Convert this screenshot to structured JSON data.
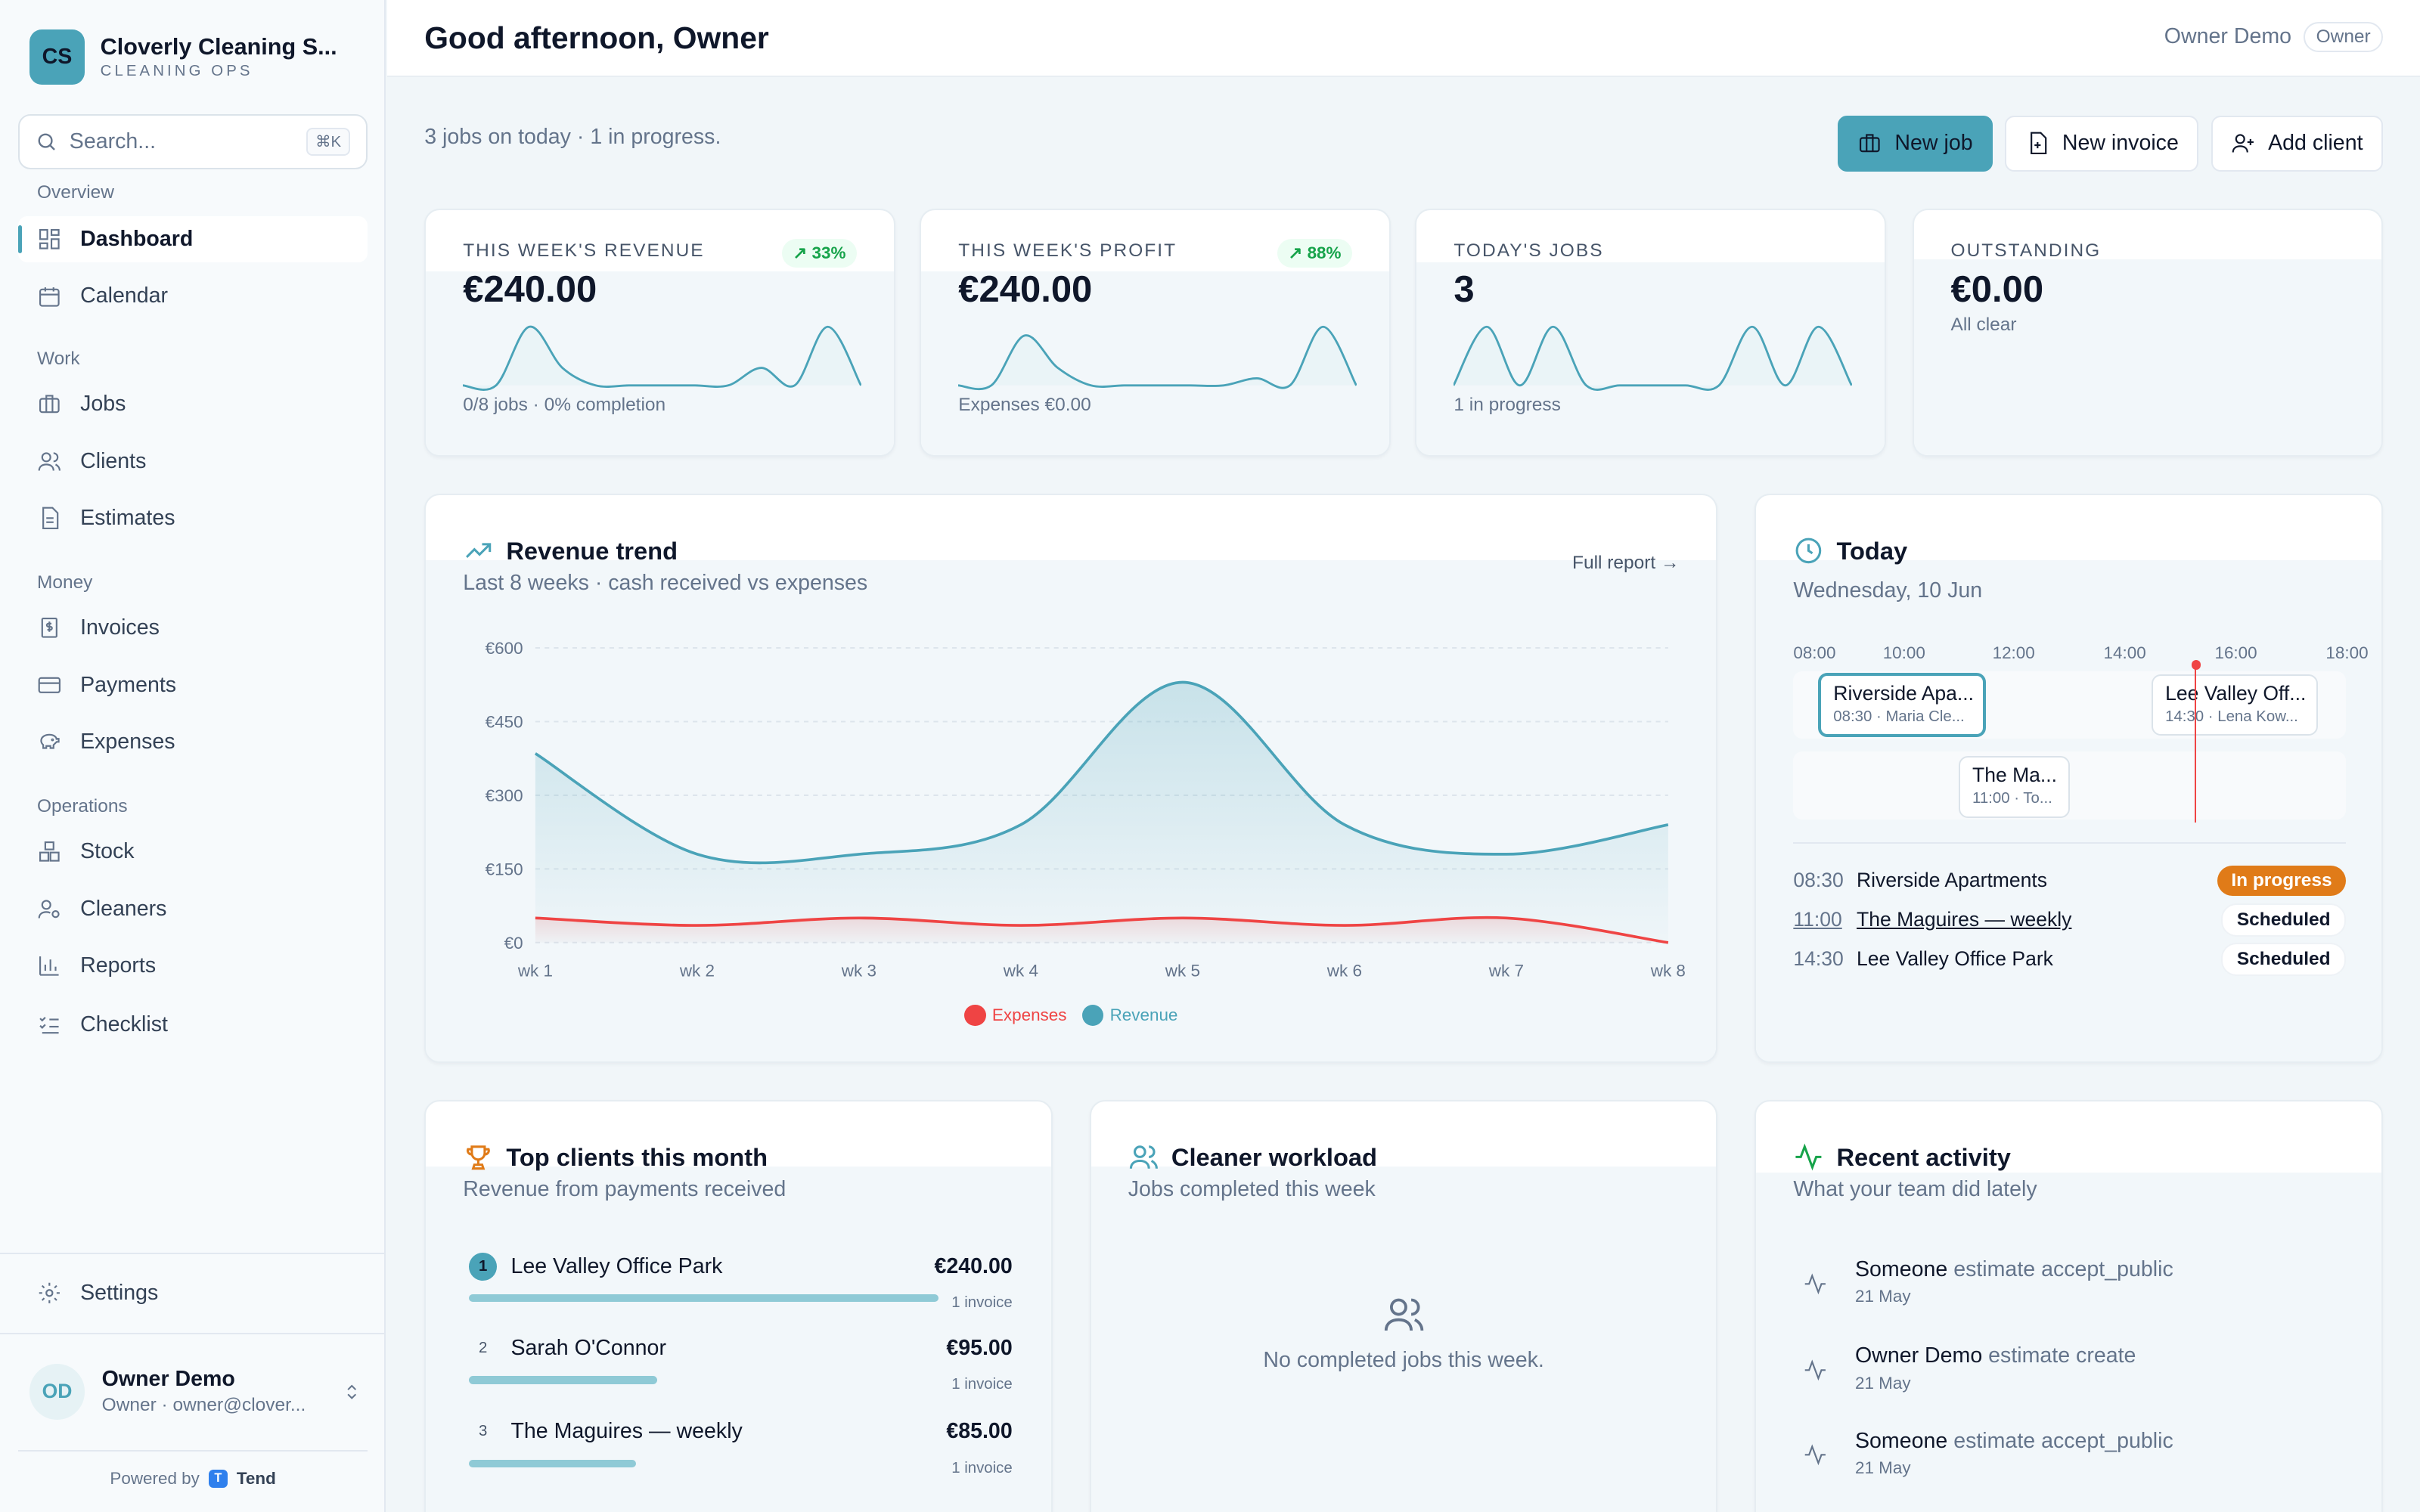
{
  "brand": {
    "initials": "CS",
    "name": "Cloverly Cleaning S...",
    "sub": "CLEANING OPS"
  },
  "search": {
    "placeholder": "Search...",
    "shortcut": "⌘K"
  },
  "nav": {
    "overview": "Overview",
    "dashboard": "Dashboard",
    "calendar": "Calendar",
    "work": "Work",
    "jobs": "Jobs",
    "clients": "Clients",
    "estimates": "Estimates",
    "money": "Money",
    "invoices": "Invoices",
    "payments": "Payments",
    "expenses": "Expenses",
    "operations": "Operations",
    "stock": "Stock",
    "cleaners": "Cleaners",
    "reports": "Reports",
    "checklist": "Checklist",
    "settings": "Settings"
  },
  "user": {
    "initials": "OD",
    "name": "Owner Demo",
    "email": "Owner · owner@clover..."
  },
  "powered": {
    "prefix": "Powered by",
    "logo": "T",
    "name": "Tend"
  },
  "header": {
    "greeting": "Good afternoon, Owner",
    "user": "Owner Demo",
    "role": "Owner"
  },
  "subline": "3 jobs on today · 1 in progress.",
  "actions": {
    "new_job": "New job",
    "new_invoice": "New invoice",
    "add_client": "Add client"
  },
  "stats": {
    "revenue": {
      "label": "THIS WEEK'S REVENUE",
      "value": "€240.00",
      "delta": "33%",
      "foot": "0/8 jobs · 0% completion",
      "spark": [
        0,
        0,
        1,
        0.3,
        0,
        0,
        0,
        0,
        0,
        0.3,
        0,
        1,
        0
      ]
    },
    "profit": {
      "label": "THIS WEEK'S PROFIT",
      "value": "€240.00",
      "delta": "88%",
      "foot": "Expenses €0.00",
      "spark": [
        0,
        0,
        0.85,
        0.3,
        0,
        0,
        0,
        0,
        0,
        0.12,
        0,
        1,
        0
      ]
    },
    "jobs": {
      "label": "TODAY'S JOBS",
      "value": "3",
      "foot": "1 in progress",
      "spark": [
        0,
        1,
        0,
        1,
        0,
        0,
        0,
        0,
        0,
        1,
        0,
        1,
        0
      ]
    },
    "outstanding": {
      "label": "OUTSTANDING",
      "value": "€0.00",
      "foot": "All clear"
    }
  },
  "revenue_trend": {
    "title": "Revenue trend",
    "subtitle": "Last 8 weeks · cash received vs expenses",
    "link": "Full report →",
    "legend_expenses": "Expenses",
    "legend_revenue": "Revenue",
    "colors": {
      "revenue": "#4aa3b8",
      "expenses": "#ef4444"
    }
  },
  "chart_data": {
    "type": "area",
    "categories": [
      "wk 1",
      "wk 2",
      "wk 3",
      "wk 4",
      "wk 5",
      "wk 6",
      "wk 7",
      "wk 8"
    ],
    "series": [
      {
        "name": "Revenue",
        "values": [
          385,
          180,
          180,
          240,
          530,
          240,
          180,
          240
        ]
      },
      {
        "name": "Expenses",
        "values": [
          50,
          35,
          50,
          35,
          50,
          35,
          50,
          0
        ]
      }
    ],
    "ylim": [
      0,
      600
    ],
    "yticks": [
      "€0",
      "€150",
      "€300",
      "€450",
      "€600"
    ],
    "grid": true,
    "legend": "bottom"
  },
  "today": {
    "title": "Today",
    "date": "Wednesday, 10 Jun",
    "hours": [
      "08:00",
      "10:00",
      "12:00",
      "14:00",
      "16:00",
      "18:00"
    ],
    "blocks": [
      {
        "title": "Riverside Apa...",
        "sub": "08:30 · Maria Cle..."
      },
      {
        "title": "Lee Valley Off...",
        "sub": "14:30 · Lena Kow..."
      },
      {
        "title": "The Ma...",
        "sub": "11:00 · To..."
      }
    ],
    "schedule": [
      {
        "time": "08:30",
        "name": "Riverside Apartments",
        "status": "In progress"
      },
      {
        "time": "11:00",
        "name": "The Maguires — weekly",
        "status": "Scheduled"
      },
      {
        "time": "14:30",
        "name": "Lee Valley Office Park",
        "status": "Scheduled"
      }
    ]
  },
  "top_clients": {
    "title": "Top clients this month",
    "subtitle": "Revenue from payments received",
    "items": [
      {
        "rank": "1",
        "name": "Lee Valley Office Park",
        "amount": "€240.00",
        "invoices": "1 invoice",
        "share": 1.0
      },
      {
        "rank": "2",
        "name": "Sarah O'Connor",
        "amount": "€95.00",
        "invoices": "1 invoice",
        "share": 0.4
      },
      {
        "rank": "3",
        "name": "The Maguires — weekly",
        "amount": "€85.00",
        "invoices": "1 invoice",
        "share": 0.355
      }
    ]
  },
  "workload": {
    "title": "Cleaner workload",
    "subtitle": "Jobs completed this week",
    "empty": "No completed jobs this week."
  },
  "activity": {
    "title": "Recent activity",
    "subtitle": "What your team did lately",
    "items": [
      {
        "who": "Someone",
        "what": "estimate accept_public",
        "date": "21 May"
      },
      {
        "who": "Owner Demo",
        "what": "estimate create",
        "date": "21 May"
      },
      {
        "who": "Someone",
        "what": "estimate accept_public",
        "date": "21 May"
      }
    ]
  }
}
